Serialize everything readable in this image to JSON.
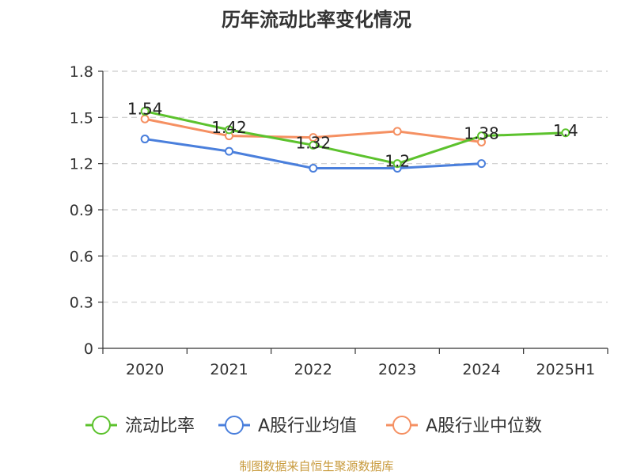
{
  "chart_data": {
    "type": "line",
    "title": "历年流动比率变化情况",
    "categories": [
      "2020",
      "2021",
      "2022",
      "2023",
      "2024",
      "2025H1"
    ],
    "ylim": [
      0,
      1.8
    ],
    "yticks": [
      "0",
      "0.3",
      "0.6",
      "0.9",
      "1.2",
      "1.5",
      "1.8"
    ],
    "grid": true,
    "legend_position": "bottom",
    "series": [
      {
        "name": "流动比率",
        "color": "#5cc22d",
        "values": [
          1.54,
          1.42,
          1.32,
          1.2,
          1.38,
          1.4
        ],
        "labels": [
          "1.54",
          "1.42",
          "1.32",
          "1.2",
          "1.38",
          "1.4"
        ]
      },
      {
        "name": "A股行业均值",
        "color": "#4a7fdc",
        "values": [
          1.36,
          1.28,
          1.17,
          1.17,
          1.2,
          null
        ]
      },
      {
        "name": "A股行业中位数",
        "color": "#f59062",
        "values": [
          1.49,
          1.38,
          1.37,
          1.41,
          1.34,
          null
        ]
      }
    ],
    "source": "制图数据来自恒生聚源数据库",
    "source_color": "#c89a3c"
  }
}
